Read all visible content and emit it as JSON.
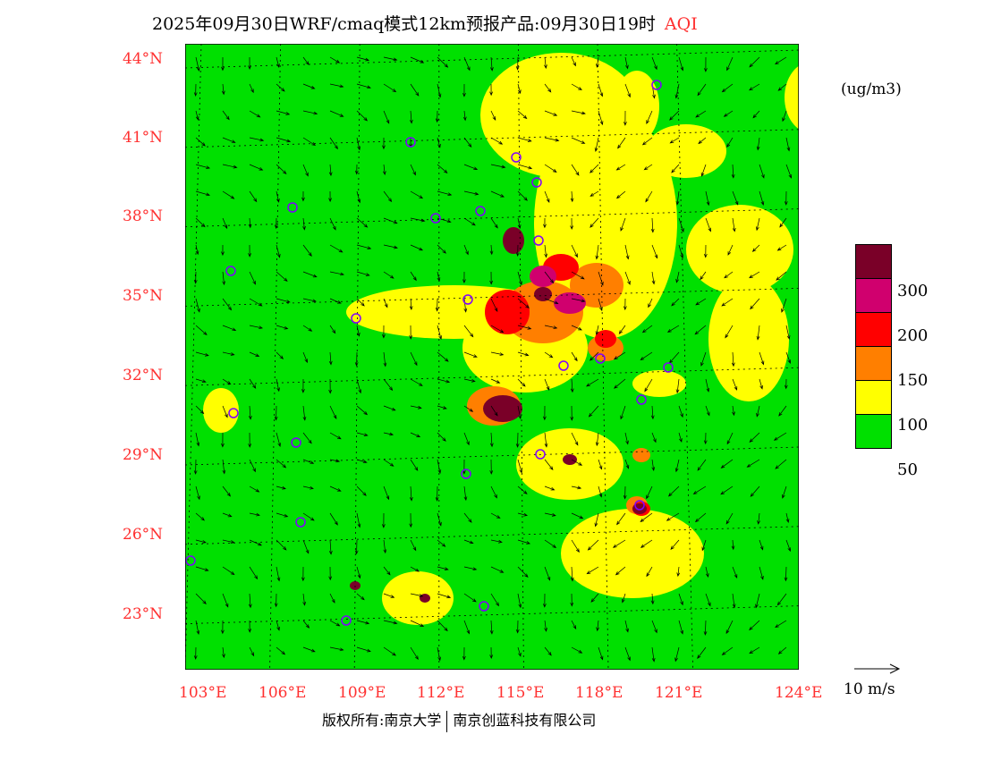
{
  "title": {
    "main": "2025年09月30日WRF/cmaq模式12km预报产品:09月30日19时",
    "species": "AQI"
  },
  "lat_labels": [
    "44°N",
    "41°N",
    "38°N",
    "35°N",
    "32°N",
    "29°N",
    "26°N",
    "23°N"
  ],
  "lon_labels": [
    "103°E",
    "106°E",
    "109°E",
    "112°E",
    "115°E",
    "118°E",
    "121°E",
    "124°E"
  ],
  "legend": {
    "unit": "(ug/m3)",
    "levels": [
      "300",
      "200",
      "150",
      "100",
      "50"
    ],
    "colors": [
      "#7a0028",
      "#d0006e",
      "#ff0000",
      "#ff7f00",
      "#ffff00",
      "#00e000"
    ]
  },
  "wind_scale": {
    "label": "10 m/s"
  },
  "copyright": {
    "left": "版权所有:南京大学",
    "right": "南京创蓝科技有限公司"
  }
}
